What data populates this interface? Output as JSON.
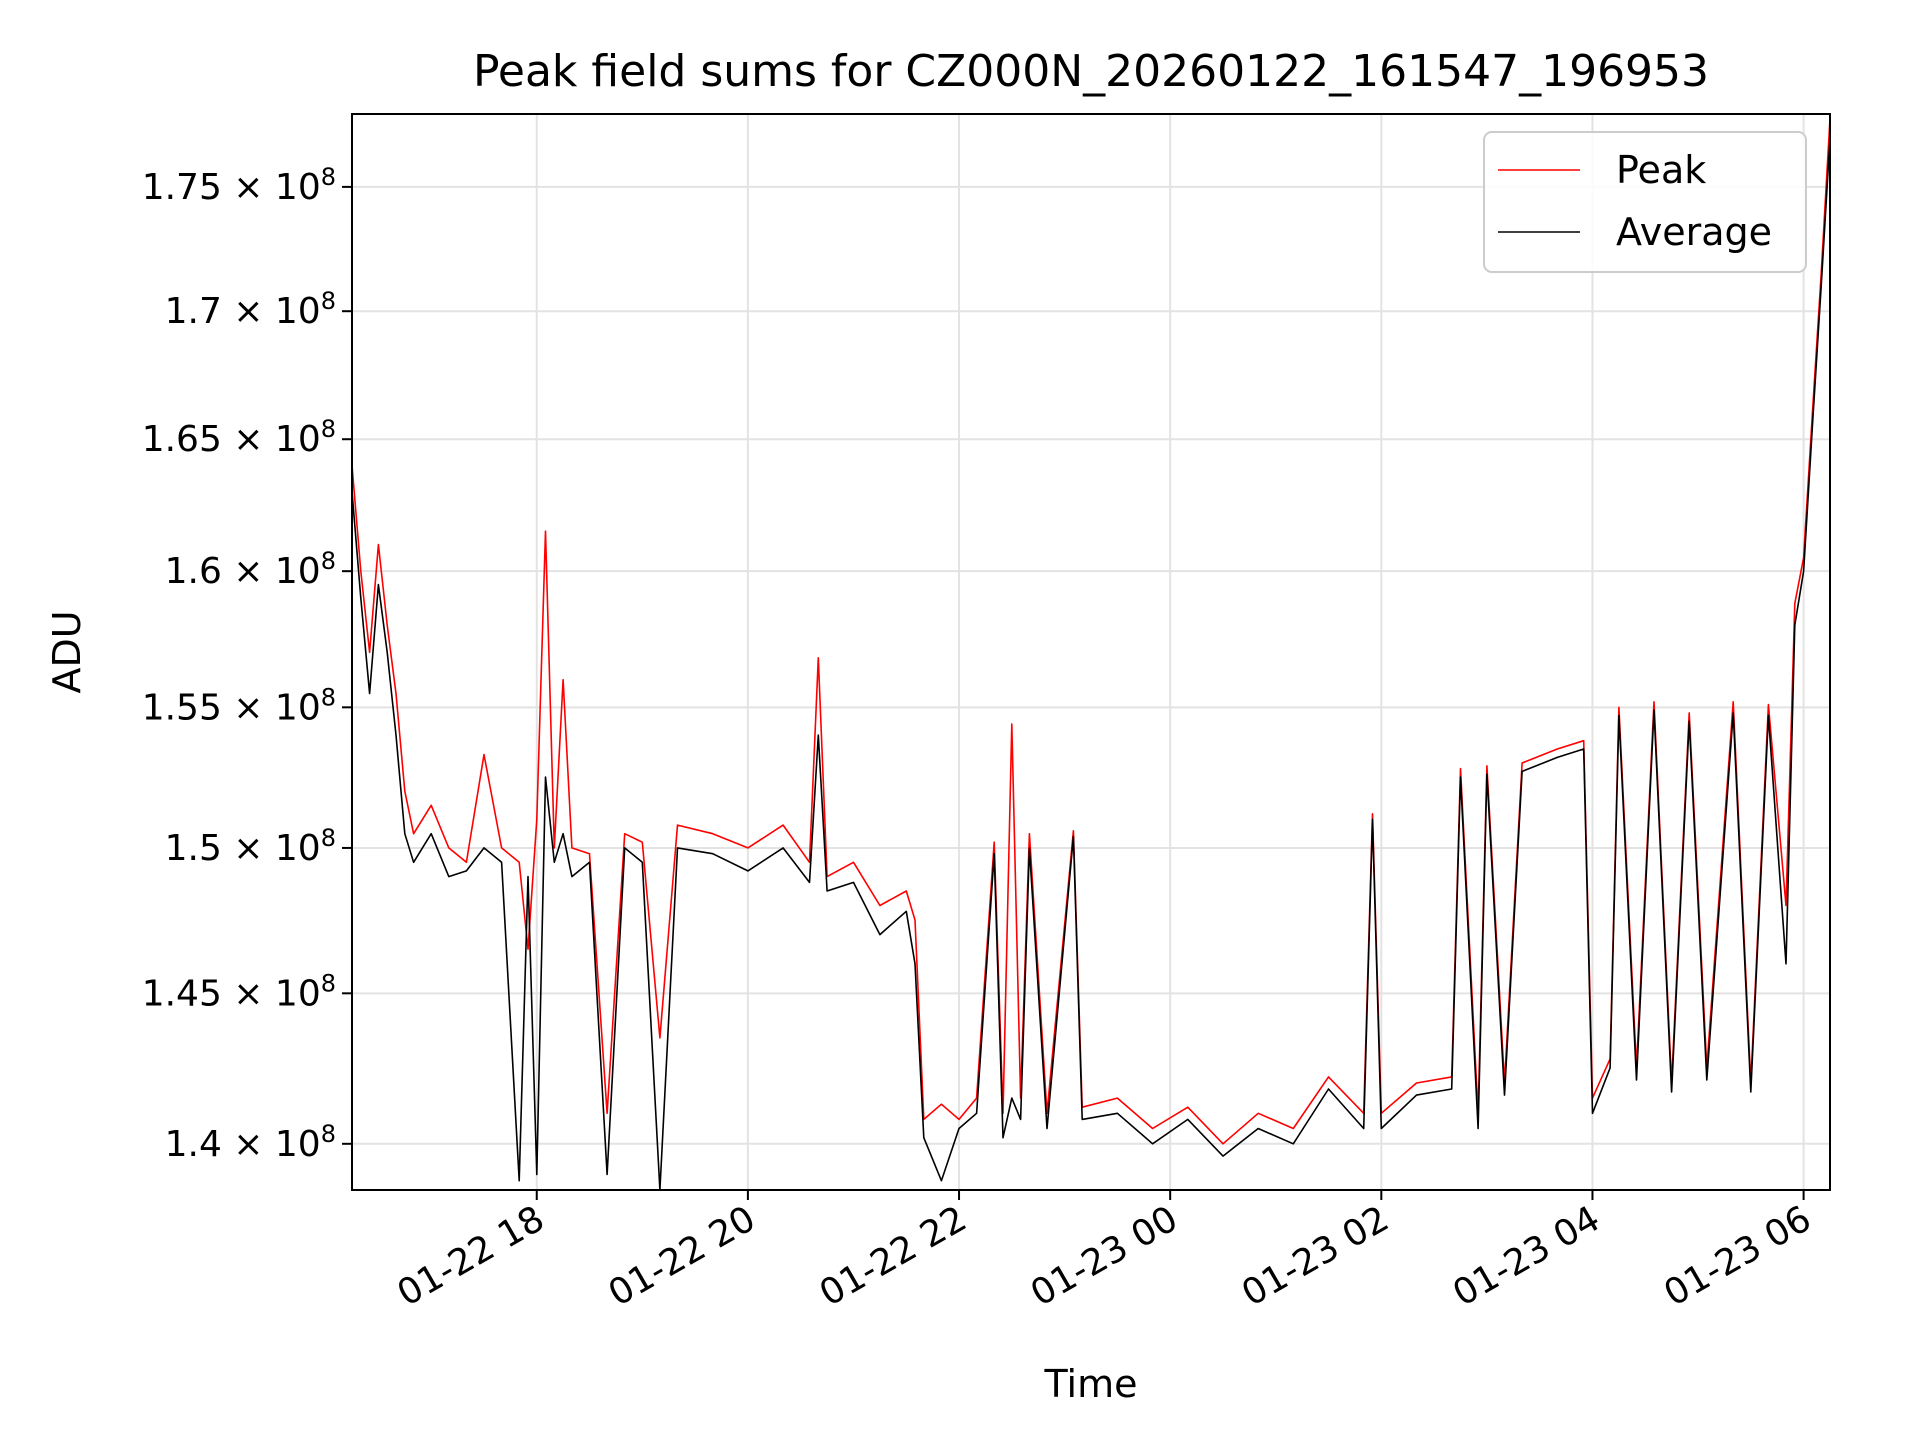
{
  "chart_data": {
    "type": "line",
    "title": "Peak field sums for CZ000N_20260122_161547_196953",
    "xlabel": "Time",
    "ylabel": "ADU",
    "x_range": [
      "2026-01-22 16:15",
      "2026-01-23 06:15"
    ],
    "ylim": [
      138500000,
      178000000
    ],
    "y_scale": "log",
    "grid": true,
    "legend_position": "top-right",
    "x_ticks": [
      "01-22 18",
      "01-22 20",
      "01-22 22",
      "01-23 00",
      "01-23 02",
      "01-23 04",
      "01-23 06"
    ],
    "y_ticks": [
      {
        "value": 140000000,
        "mantissa": "1.4",
        "exp": "8"
      },
      {
        "value": 145000000,
        "mantissa": "1.45",
        "exp": "8"
      },
      {
        "value": 150000000,
        "mantissa": "1.5",
        "exp": "8"
      },
      {
        "value": 155000000,
        "mantissa": "1.55",
        "exp": "8"
      },
      {
        "value": 160000000,
        "mantissa": "1.6",
        "exp": "8"
      },
      {
        "value": 165000000,
        "mantissa": "1.65",
        "exp": "8"
      },
      {
        "value": 170000000,
        "mantissa": "1.7",
        "exp": "8"
      },
      {
        "value": 175000000,
        "mantissa": "1.75",
        "exp": "8"
      }
    ],
    "series": [
      {
        "name": "Peak",
        "color": "#ff0000",
        "points": [
          [
            "2026-01-22 16:15",
            164000000
          ],
          [
            "2026-01-22 16:20",
            160000000
          ],
          [
            "2026-01-22 16:25",
            157000000
          ],
          [
            "2026-01-22 16:30",
            161000000
          ],
          [
            "2026-01-22 16:35",
            158000000
          ],
          [
            "2026-01-22 16:40",
            155500000
          ],
          [
            "2026-01-22 16:45",
            152000000
          ],
          [
            "2026-01-22 16:50",
            150500000
          ],
          [
            "2026-01-22 17:00",
            151500000
          ],
          [
            "2026-01-22 17:10",
            150000000
          ],
          [
            "2026-01-22 17:20",
            149500000
          ],
          [
            "2026-01-22 17:30",
            153300000
          ],
          [
            "2026-01-22 17:40",
            150000000
          ],
          [
            "2026-01-22 17:50",
            149500000
          ],
          [
            "2026-01-22 17:55",
            146500000
          ],
          [
            "2026-01-22 18:00",
            151000000
          ],
          [
            "2026-01-22 18:05",
            161500000
          ],
          [
            "2026-01-22 18:10",
            150000000
          ],
          [
            "2026-01-22 18:15",
            156000000
          ],
          [
            "2026-01-22 18:20",
            150000000
          ],
          [
            "2026-01-22 18:30",
            149800000
          ],
          [
            "2026-01-22 18:40",
            141000000
          ],
          [
            "2026-01-22 18:50",
            150500000
          ],
          [
            "2026-01-22 19:00",
            150200000
          ],
          [
            "2026-01-22 19:10",
            143500000
          ],
          [
            "2026-01-22 19:20",
            150800000
          ],
          [
            "2026-01-22 19:40",
            150500000
          ],
          [
            "2026-01-22 20:00",
            150000000
          ],
          [
            "2026-01-22 20:20",
            150800000
          ],
          [
            "2026-01-22 20:35",
            149500000
          ],
          [
            "2026-01-22 20:40",
            156800000
          ],
          [
            "2026-01-22 20:45",
            149000000
          ],
          [
            "2026-01-22 21:00",
            149500000
          ],
          [
            "2026-01-22 21:15",
            148000000
          ],
          [
            "2026-01-22 21:30",
            148500000
          ],
          [
            "2026-01-22 21:35",
            147500000
          ],
          [
            "2026-01-22 21:40",
            140800000
          ],
          [
            "2026-01-22 21:50",
            141300000
          ],
          [
            "2026-01-22 22:00",
            140800000
          ],
          [
            "2026-01-22 22:10",
            141500000
          ],
          [
            "2026-01-22 22:20",
            150200000
          ],
          [
            "2026-01-22 22:25",
            141000000
          ],
          [
            "2026-01-22 22:30",
            154400000
          ],
          [
            "2026-01-22 22:35",
            141500000
          ],
          [
            "2026-01-22 22:40",
            150500000
          ],
          [
            "2026-01-22 22:50",
            141000000
          ],
          [
            "2026-01-22 23:05",
            150600000
          ],
          [
            "2026-01-22 23:10",
            141200000
          ],
          [
            "2026-01-22 23:30",
            141500000
          ],
          [
            "2026-01-22 23:50",
            140500000
          ],
          [
            "2026-01-23 00:10",
            141200000
          ],
          [
            "2026-01-23 00:30",
            140000000
          ],
          [
            "2026-01-23 00:50",
            141000000
          ],
          [
            "2026-01-23 01:10",
            140500000
          ],
          [
            "2026-01-23 01:30",
            142200000
          ],
          [
            "2026-01-23 01:50",
            141000000
          ],
          [
            "2026-01-23 01:55",
            151200000
          ],
          [
            "2026-01-23 02:00",
            141000000
          ],
          [
            "2026-01-23 02:20",
            142000000
          ],
          [
            "2026-01-23 02:40",
            142200000
          ],
          [
            "2026-01-23 02:45",
            152800000
          ],
          [
            "2026-01-23 02:55",
            141000000
          ],
          [
            "2026-01-23 03:00",
            152900000
          ],
          [
            "2026-01-23 03:10",
            142000000
          ],
          [
            "2026-01-23 03:20",
            153000000
          ],
          [
            "2026-01-23 03:40",
            153500000
          ],
          [
            "2026-01-23 03:55",
            153800000
          ],
          [
            "2026-01-23 04:00",
            141500000
          ],
          [
            "2026-01-23 04:10",
            142800000
          ],
          [
            "2026-01-23 04:15",
            155000000
          ],
          [
            "2026-01-23 04:25",
            142500000
          ],
          [
            "2026-01-23 04:35",
            155200000
          ],
          [
            "2026-01-23 04:45",
            142000000
          ],
          [
            "2026-01-23 04:55",
            154800000
          ],
          [
            "2026-01-23 05:05",
            142500000
          ],
          [
            "2026-01-23 05:20",
            155200000
          ],
          [
            "2026-01-23 05:30",
            142000000
          ],
          [
            "2026-01-23 05:40",
            155100000
          ],
          [
            "2026-01-23 05:50",
            148000000
          ],
          [
            "2026-01-23 05:55",
            158800000
          ],
          [
            "2026-01-23 06:00",
            160500000
          ],
          [
            "2026-01-23 06:05",
            166000000
          ],
          [
            "2026-01-23 06:10",
            171500000
          ],
          [
            "2026-01-23 06:15",
            177800000
          ]
        ]
      },
      {
        "name": "Average",
        "color": "#000000",
        "points": [
          [
            "2026-01-22 16:15",
            163000000
          ],
          [
            "2026-01-22 16:20",
            159000000
          ],
          [
            "2026-01-22 16:25",
            155500000
          ],
          [
            "2026-01-22 16:30",
            159500000
          ],
          [
            "2026-01-22 16:35",
            157000000
          ],
          [
            "2026-01-22 16:40",
            154000000
          ],
          [
            "2026-01-22 16:45",
            150500000
          ],
          [
            "2026-01-22 16:50",
            149500000
          ],
          [
            "2026-01-22 17:00",
            150500000
          ],
          [
            "2026-01-22 17:10",
            149000000
          ],
          [
            "2026-01-22 17:20",
            149200000
          ],
          [
            "2026-01-22 17:30",
            150000000
          ],
          [
            "2026-01-22 17:40",
            149500000
          ],
          [
            "2026-01-22 17:50",
            138800000
          ],
          [
            "2026-01-22 17:55",
            149000000
          ],
          [
            "2026-01-22 18:00",
            139000000
          ],
          [
            "2026-01-22 18:05",
            152500000
          ],
          [
            "2026-01-22 18:10",
            149500000
          ],
          [
            "2026-01-22 18:15",
            150500000
          ],
          [
            "2026-01-22 18:20",
            149000000
          ],
          [
            "2026-01-22 18:30",
            149500000
          ],
          [
            "2026-01-22 18:40",
            139000000
          ],
          [
            "2026-01-22 18:50",
            150000000
          ],
          [
            "2026-01-22 19:00",
            149500000
          ],
          [
            "2026-01-22 19:10",
            138500000
          ],
          [
            "2026-01-22 19:20",
            150000000
          ],
          [
            "2026-01-22 19:40",
            149800000
          ],
          [
            "2026-01-22 20:00",
            149200000
          ],
          [
            "2026-01-22 20:20",
            150000000
          ],
          [
            "2026-01-22 20:35",
            148800000
          ],
          [
            "2026-01-22 20:40",
            154000000
          ],
          [
            "2026-01-22 20:45",
            148500000
          ],
          [
            "2026-01-22 21:00",
            148800000
          ],
          [
            "2026-01-22 21:15",
            147000000
          ],
          [
            "2026-01-22 21:30",
            147800000
          ],
          [
            "2026-01-22 21:35",
            146000000
          ],
          [
            "2026-01-22 21:40",
            140200000
          ],
          [
            "2026-01-22 21:50",
            138800000
          ],
          [
            "2026-01-22 22:00",
            140500000
          ],
          [
            "2026-01-22 22:10",
            141000000
          ],
          [
            "2026-01-22 22:20",
            149800000
          ],
          [
            "2026-01-22 22:25",
            140200000
          ],
          [
            "2026-01-22 22:30",
            141500000
          ],
          [
            "2026-01-22 22:35",
            140800000
          ],
          [
            "2026-01-22 22:40",
            150000000
          ],
          [
            "2026-01-22 22:50",
            140500000
          ],
          [
            "2026-01-22 23:05",
            150400000
          ],
          [
            "2026-01-22 23:10",
            140800000
          ],
          [
            "2026-01-22 23:30",
            141000000
          ],
          [
            "2026-01-22 23:50",
            140000000
          ],
          [
            "2026-01-23 00:10",
            140800000
          ],
          [
            "2026-01-23 00:30",
            139600000
          ],
          [
            "2026-01-23 00:50",
            140500000
          ],
          [
            "2026-01-23 01:10",
            140000000
          ],
          [
            "2026-01-23 01:30",
            141800000
          ],
          [
            "2026-01-23 01:50",
            140500000
          ],
          [
            "2026-01-23 01:55",
            151000000
          ],
          [
            "2026-01-23 02:00",
            140500000
          ],
          [
            "2026-01-23 02:20",
            141600000
          ],
          [
            "2026-01-23 02:40",
            141800000
          ],
          [
            "2026-01-23 02:45",
            152500000
          ],
          [
            "2026-01-23 02:55",
            140500000
          ],
          [
            "2026-01-23 03:00",
            152600000
          ],
          [
            "2026-01-23 03:10",
            141600000
          ],
          [
            "2026-01-23 03:20",
            152700000
          ],
          [
            "2026-01-23 03:40",
            153200000
          ],
          [
            "2026-01-23 03:55",
            153500000
          ],
          [
            "2026-01-23 04:00",
            141000000
          ],
          [
            "2026-01-23 04:10",
            142500000
          ],
          [
            "2026-01-23 04:15",
            154700000
          ],
          [
            "2026-01-23 04:25",
            142100000
          ],
          [
            "2026-01-23 04:35",
            154900000
          ],
          [
            "2026-01-23 04:45",
            141700000
          ],
          [
            "2026-01-23 04:55",
            154500000
          ],
          [
            "2026-01-23 05:05",
            142100000
          ],
          [
            "2026-01-23 05:20",
            154800000
          ],
          [
            "2026-01-23 05:30",
            141700000
          ],
          [
            "2026-01-23 05:40",
            154700000
          ],
          [
            "2026-01-23 05:50",
            146000000
          ],
          [
            "2026-01-23 05:55",
            158000000
          ],
          [
            "2026-01-23 06:00",
            160000000
          ],
          [
            "2026-01-23 06:05",
            165500000
          ],
          [
            "2026-01-23 06:10",
            171000000
          ],
          [
            "2026-01-23 06:15",
            177000000
          ]
        ]
      }
    ]
  }
}
